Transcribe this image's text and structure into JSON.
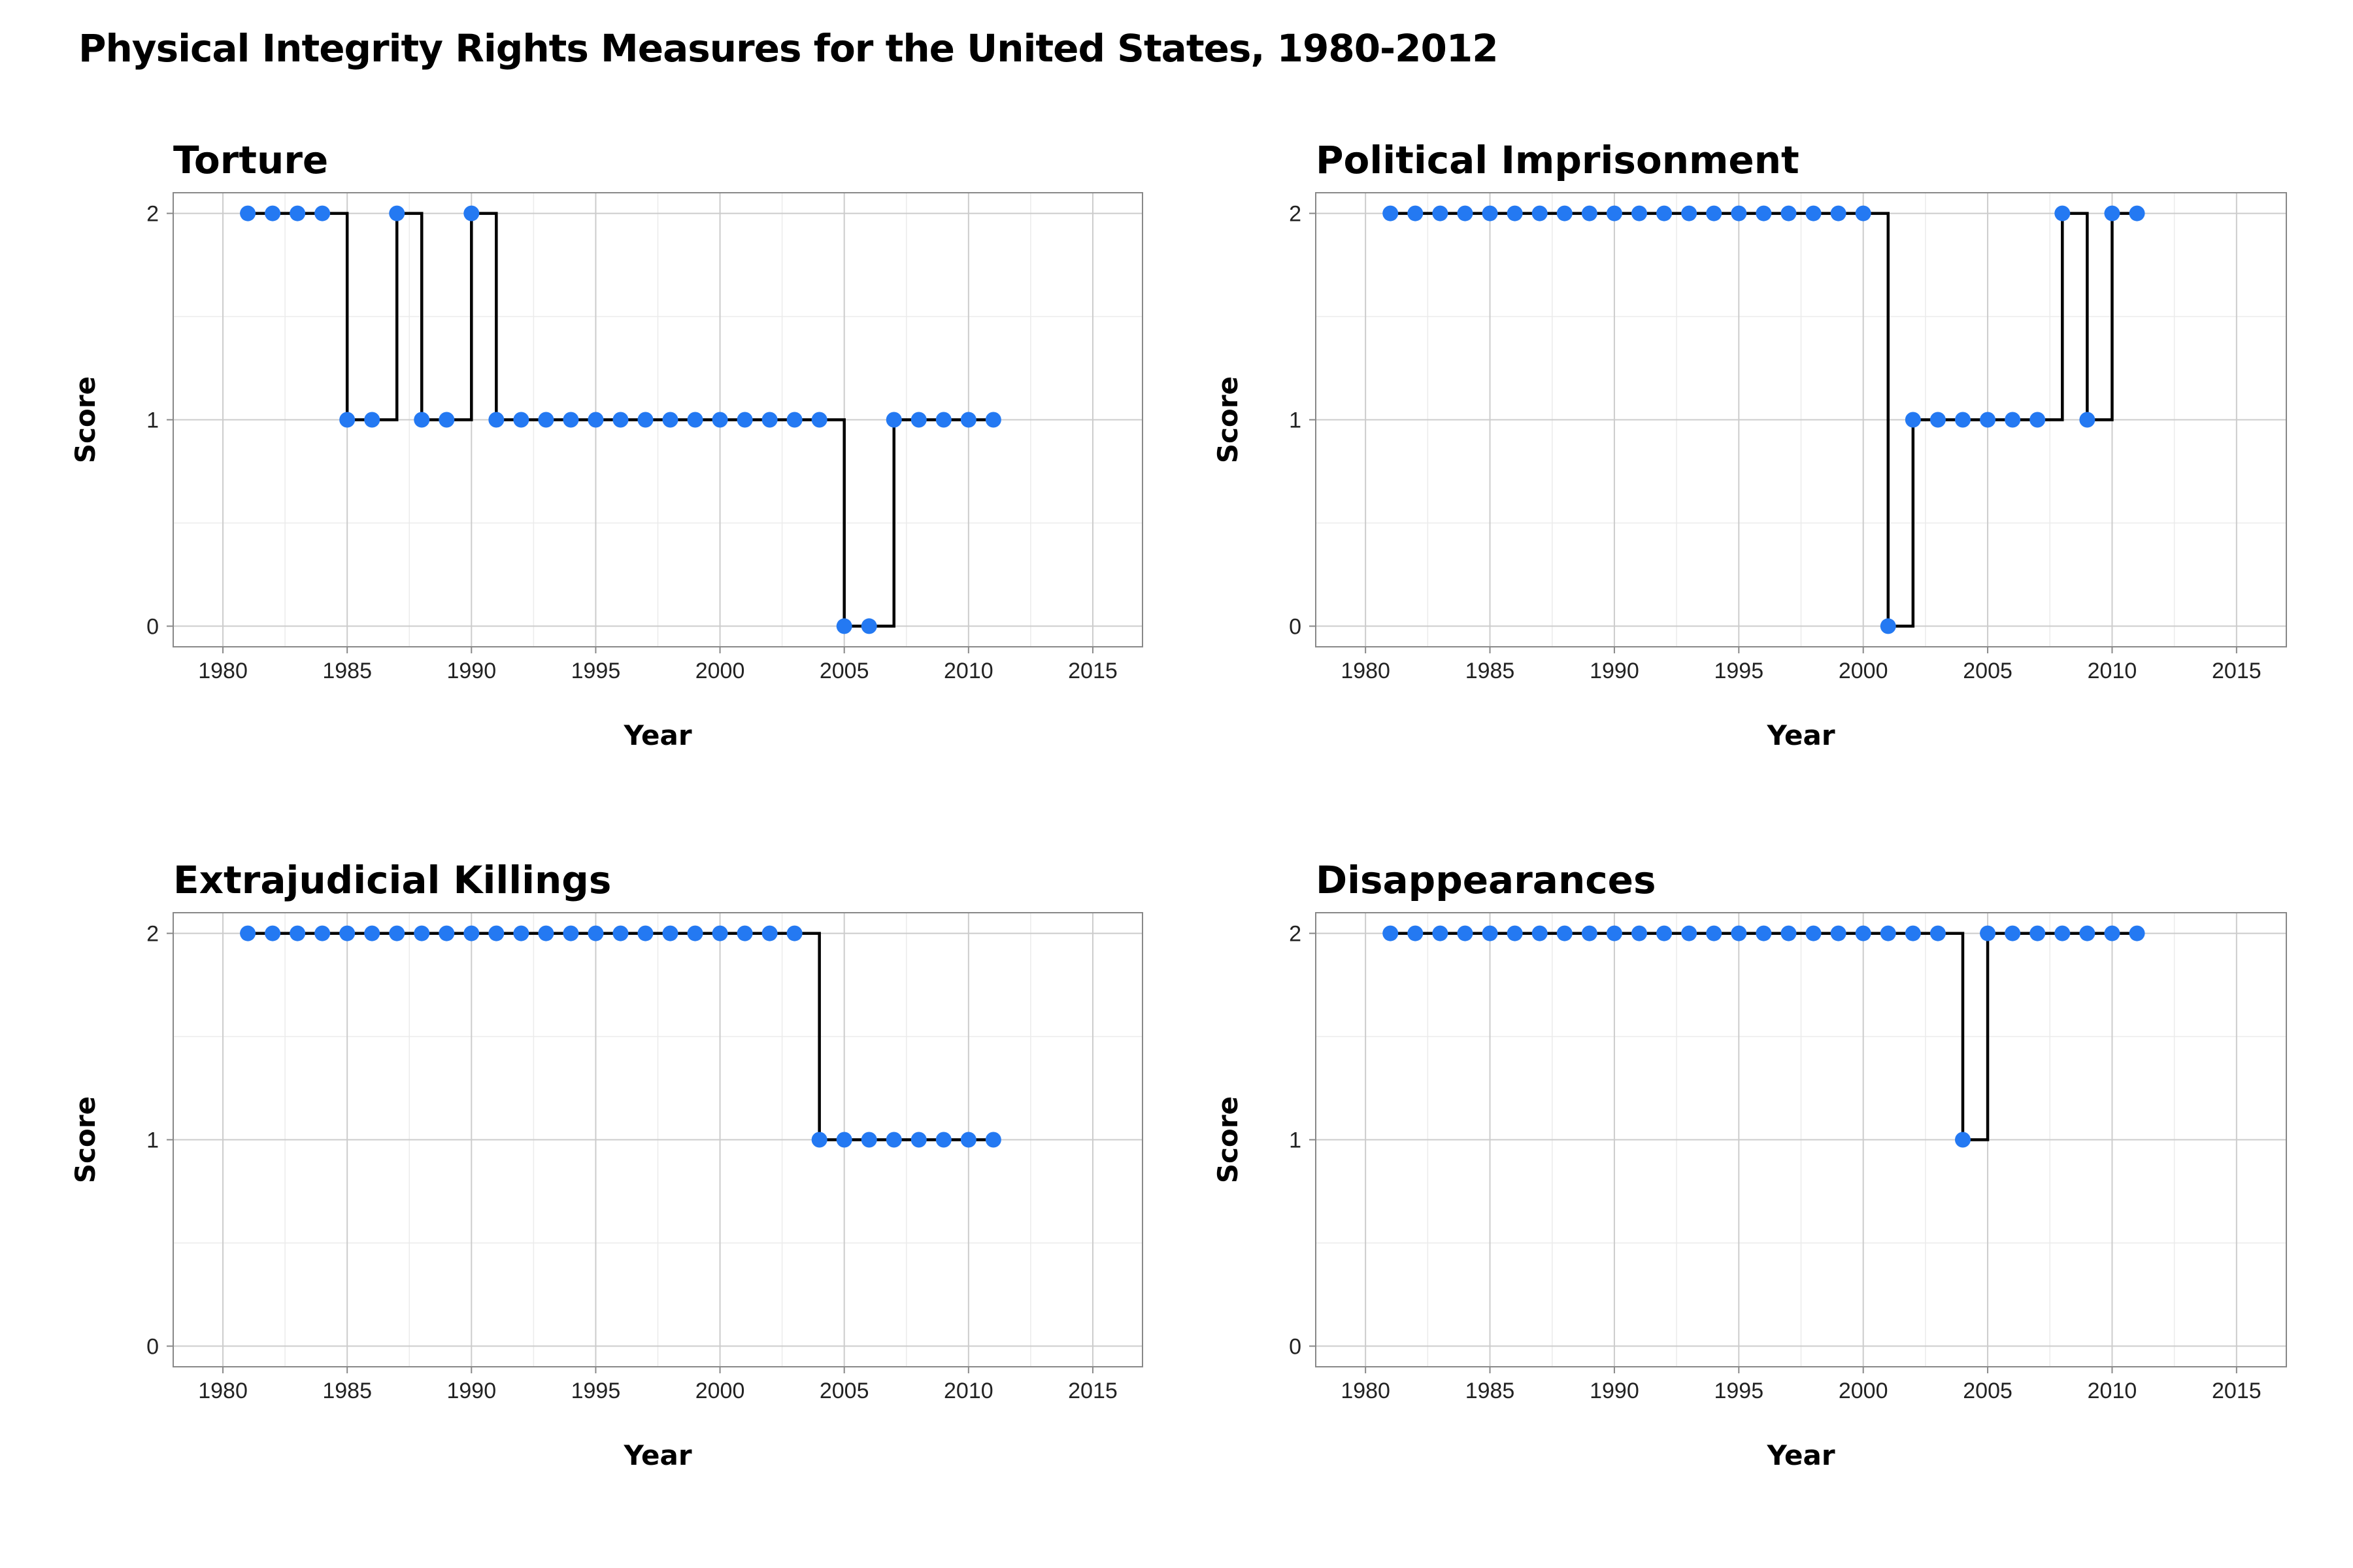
{
  "title": "Physical Integrity Rights Measures for the United States, 1980-2012",
  "accent_color": "#2479f2",
  "chart_data": [
    {
      "type": "line",
      "step": true,
      "title": "Torture",
      "xlabel": "Year",
      "ylabel": "Score",
      "xlim": [
        1978,
        2017
      ],
      "ylim": [
        -0.1,
        2.1
      ],
      "xticks": [
        1980,
        1985,
        1990,
        1995,
        2000,
        2005,
        2010,
        2015
      ],
      "yticks": [
        0,
        1,
        2
      ],
      "grid": true,
      "x": [
        1981,
        1982,
        1983,
        1984,
        1985,
        1986,
        1987,
        1988,
        1989,
        1990,
        1991,
        1992,
        1993,
        1994,
        1995,
        1996,
        1997,
        1998,
        1999,
        2000,
        2001,
        2002,
        2003,
        2004,
        2005,
        2006,
        2007,
        2008,
        2009,
        2010,
        2011
      ],
      "values": [
        2,
        2,
        2,
        2,
        1,
        1,
        2,
        1,
        1,
        2,
        1,
        1,
        1,
        1,
        1,
        1,
        1,
        1,
        1,
        1,
        1,
        1,
        1,
        1,
        0,
        0,
        1,
        1,
        1,
        1,
        1
      ]
    },
    {
      "type": "line",
      "step": true,
      "title": "Political Imprisonment",
      "xlabel": "Year",
      "ylabel": "Score",
      "xlim": [
        1978,
        2017
      ],
      "ylim": [
        -0.1,
        2.1
      ],
      "xticks": [
        1980,
        1985,
        1990,
        1995,
        2000,
        2005,
        2010,
        2015
      ],
      "yticks": [
        0,
        1,
        2
      ],
      "grid": true,
      "x": [
        1981,
        1982,
        1983,
        1984,
        1985,
        1986,
        1987,
        1988,
        1989,
        1990,
        1991,
        1992,
        1993,
        1994,
        1995,
        1996,
        1997,
        1998,
        1999,
        2000,
        2001,
        2002,
        2003,
        2004,
        2005,
        2006,
        2007,
        2008,
        2009,
        2010,
        2011
      ],
      "values": [
        2,
        2,
        2,
        2,
        2,
        2,
        2,
        2,
        2,
        2,
        2,
        2,
        2,
        2,
        2,
        2,
        2,
        2,
        2,
        2,
        0,
        1,
        1,
        1,
        1,
        1,
        1,
        2,
        1,
        2,
        2
      ]
    },
    {
      "type": "line",
      "step": true,
      "title": "Extrajudicial Killings",
      "xlabel": "Year",
      "ylabel": "Score",
      "xlim": [
        1978,
        2017
      ],
      "ylim": [
        -0.1,
        2.1
      ],
      "xticks": [
        1980,
        1985,
        1990,
        1995,
        2000,
        2005,
        2010,
        2015
      ],
      "yticks": [
        0,
        1,
        2
      ],
      "grid": true,
      "x": [
        1981,
        1982,
        1983,
        1984,
        1985,
        1986,
        1987,
        1988,
        1989,
        1990,
        1991,
        1992,
        1993,
        1994,
        1995,
        1996,
        1997,
        1998,
        1999,
        2000,
        2001,
        2002,
        2003,
        2004,
        2005,
        2006,
        2007,
        2008,
        2009,
        2010,
        2011
      ],
      "values": [
        2,
        2,
        2,
        2,
        2,
        2,
        2,
        2,
        2,
        2,
        2,
        2,
        2,
        2,
        2,
        2,
        2,
        2,
        2,
        2,
        2,
        2,
        2,
        1,
        1,
        1,
        1,
        1,
        1,
        1,
        1
      ]
    },
    {
      "type": "line",
      "step": true,
      "title": "Disappearances",
      "xlabel": "Year",
      "ylabel": "Score",
      "xlim": [
        1978,
        2017
      ],
      "ylim": [
        -0.1,
        2.1
      ],
      "xticks": [
        1980,
        1985,
        1990,
        1995,
        2000,
        2005,
        2010,
        2015
      ],
      "yticks": [
        0,
        1,
        2
      ],
      "grid": true,
      "x": [
        1981,
        1982,
        1983,
        1984,
        1985,
        1986,
        1987,
        1988,
        1989,
        1990,
        1991,
        1992,
        1993,
        1994,
        1995,
        1996,
        1997,
        1998,
        1999,
        2000,
        2001,
        2002,
        2003,
        2004,
        2005,
        2006,
        2007,
        2008,
        2009,
        2010,
        2011
      ],
      "values": [
        2,
        2,
        2,
        2,
        2,
        2,
        2,
        2,
        2,
        2,
        2,
        2,
        2,
        2,
        2,
        2,
        2,
        2,
        2,
        2,
        2,
        2,
        2,
        1,
        2,
        2,
        2,
        2,
        2,
        2,
        2
      ]
    }
  ]
}
